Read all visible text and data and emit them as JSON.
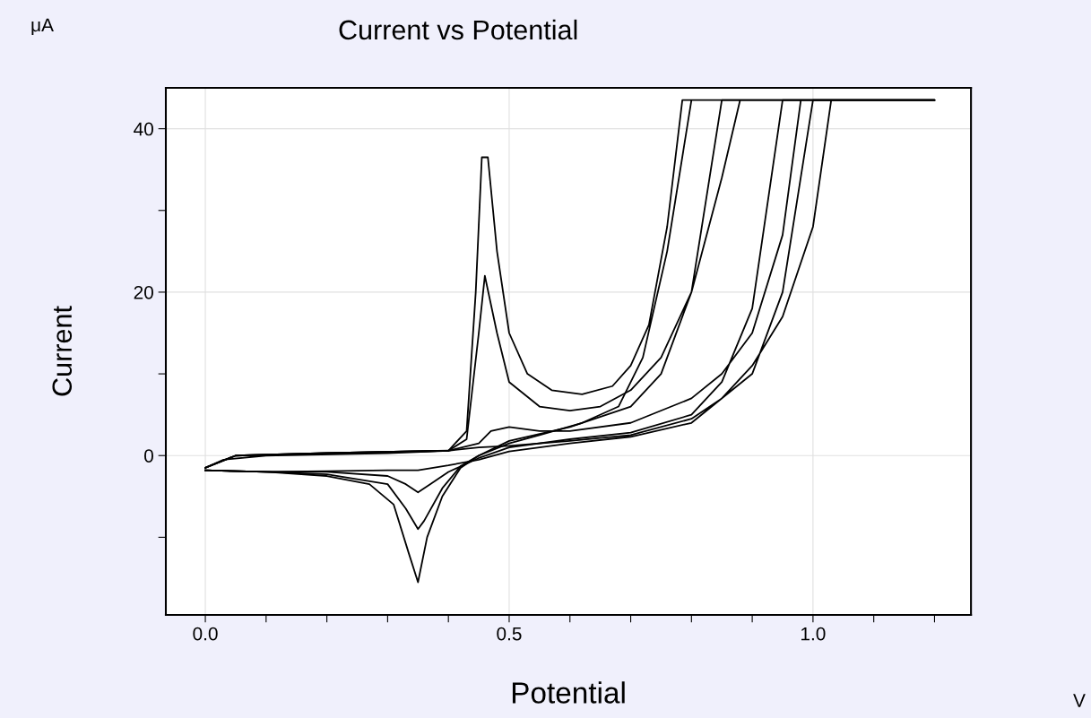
{
  "chart_data": {
    "type": "line",
    "title": "Current vs Potential",
    "xlabel": "Potential",
    "ylabel": "Current",
    "annotations": [
      "μA",
      "V"
    ],
    "xlim": [
      -0.065,
      1.26
    ],
    "ylim": [
      -19.5,
      45
    ],
    "xticks": [
      {
        "value": 0,
        "label": "0.0"
      },
      {
        "value": 0.1,
        "label": null
      },
      {
        "value": 0.2,
        "label": null
      },
      {
        "value": 0.3,
        "label": null
      },
      {
        "value": 0.4,
        "label": null
      },
      {
        "value": 0.5,
        "label": "0.5"
      },
      {
        "value": 0.6,
        "label": null
      },
      {
        "value": 0.7,
        "label": null
      },
      {
        "value": 0.8,
        "label": null
      },
      {
        "value": 0.9,
        "label": null
      },
      {
        "value": 1.0,
        "label": "1.0"
      },
      {
        "value": 1.1,
        "label": null
      },
      {
        "value": 1.2,
        "label": null
      }
    ],
    "yticks": [
      {
        "value": -10,
        "label": null
      },
      0,
      {
        "value": 10,
        "label": null
      },
      20,
      {
        "value": 30,
        "label": null
      },
      40
    ],
    "grid": true,
    "marker": "none",
    "line_style": "solid",
    "series": [
      {
        "color": "#000000",
        "x": [
          0,
          0.05,
          0.2,
          0.4,
          0.45,
          0.5,
          0.6,
          0.7,
          0.8,
          0.85,
          0.9,
          0.95,
          1.0,
          1.03,
          1.2,
          1.0,
          0.95,
          0.9,
          0.8,
          0.7,
          0.6,
          0.5,
          0.45,
          0.4,
          0.35,
          0.3,
          0.2,
          0.1,
          0
        ],
        "values": [
          -1.5,
          0,
          0.3,
          0.6,
          1.0,
          1.2,
          1.8,
          2.5,
          4.5,
          7,
          11,
          17,
          28,
          43.5,
          43.5,
          43.5,
          20,
          10,
          4,
          2.3,
          1.5,
          0.5,
          -0.5,
          -1.2,
          -1.8,
          -1.8,
          -1.9,
          -2,
          -1.8
        ]
      },
      {
        "color": "#000000",
        "x": [
          0,
          0.05,
          0.2,
          0.4,
          0.45,
          0.47,
          0.5,
          0.55,
          0.6,
          0.7,
          0.8,
          0.85,
          0.9,
          0.95,
          0.98,
          1.2,
          0.95,
          0.9,
          0.85,
          0.8,
          0.7,
          0.6,
          0.5,
          0.45,
          0.4,
          0.37,
          0.35,
          0.33,
          0.3,
          0.2,
          0.1,
          0
        ],
        "values": [
          -1.5,
          0,
          0.3,
          0.6,
          1.5,
          3,
          3.5,
          3,
          3,
          4,
          7,
          10,
          15,
          27,
          43.5,
          43.5,
          43.5,
          18,
          9,
          5,
          2.8,
          2,
          1,
          -0.3,
          -2,
          -3.5,
          -4.5,
          -3.5,
          -2.5,
          -2,
          -2,
          -1.8
        ]
      },
      {
        "color": "#000000",
        "x": [
          0,
          0.05,
          0.2,
          0.4,
          0.43,
          0.45,
          0.46,
          0.48,
          0.5,
          0.55,
          0.6,
          0.65,
          0.7,
          0.75,
          0.8,
          0.85,
          0.88,
          1.2,
          0.85,
          0.8,
          0.75,
          0.7,
          0.6,
          0.5,
          0.45,
          0.42,
          0.39,
          0.36,
          0.35,
          0.33,
          0.3,
          0.2,
          0.1,
          0
        ],
        "values": [
          -1.5,
          0,
          0.3,
          0.6,
          2,
          15,
          22,
          15,
          9,
          6,
          5.5,
          6,
          8,
          12,
          20,
          34,
          43.5,
          43.5,
          43.5,
          20,
          10,
          6,
          3.5,
          1.8,
          0,
          -1.3,
          -4,
          -8,
          -9,
          -6.5,
          -3.5,
          -2.3,
          -2,
          -1.8
        ]
      },
      {
        "color": "#000000",
        "x": [
          0,
          0.03,
          0.1,
          0.3,
          0.4,
          0.43,
          0.445,
          0.455,
          0.465,
          0.48,
          0.5,
          0.53,
          0.57,
          0.62,
          0.67,
          0.7,
          0.73,
          0.76,
          0.785,
          1.2,
          0.8,
          0.76,
          0.72,
          0.68,
          0.62,
          0.55,
          0.5,
          0.45,
          0.42,
          0.39,
          0.365,
          0.35,
          0.335,
          0.31,
          0.27,
          0.2,
          0.1,
          0
        ],
        "values": [
          -1.5,
          -0.5,
          0,
          0.3,
          0.6,
          3,
          20,
          36.5,
          36.5,
          25,
          15,
          10,
          8,
          7.5,
          8.5,
          11,
          16,
          28,
          43.5,
          43.5,
          43.5,
          25,
          12,
          6,
          4,
          2.5,
          1.5,
          0,
          -1.5,
          -5,
          -10,
          -15.5,
          -12,
          -6,
          -3.5,
          -2.5,
          -2,
          -1.8
        ]
      }
    ]
  }
}
